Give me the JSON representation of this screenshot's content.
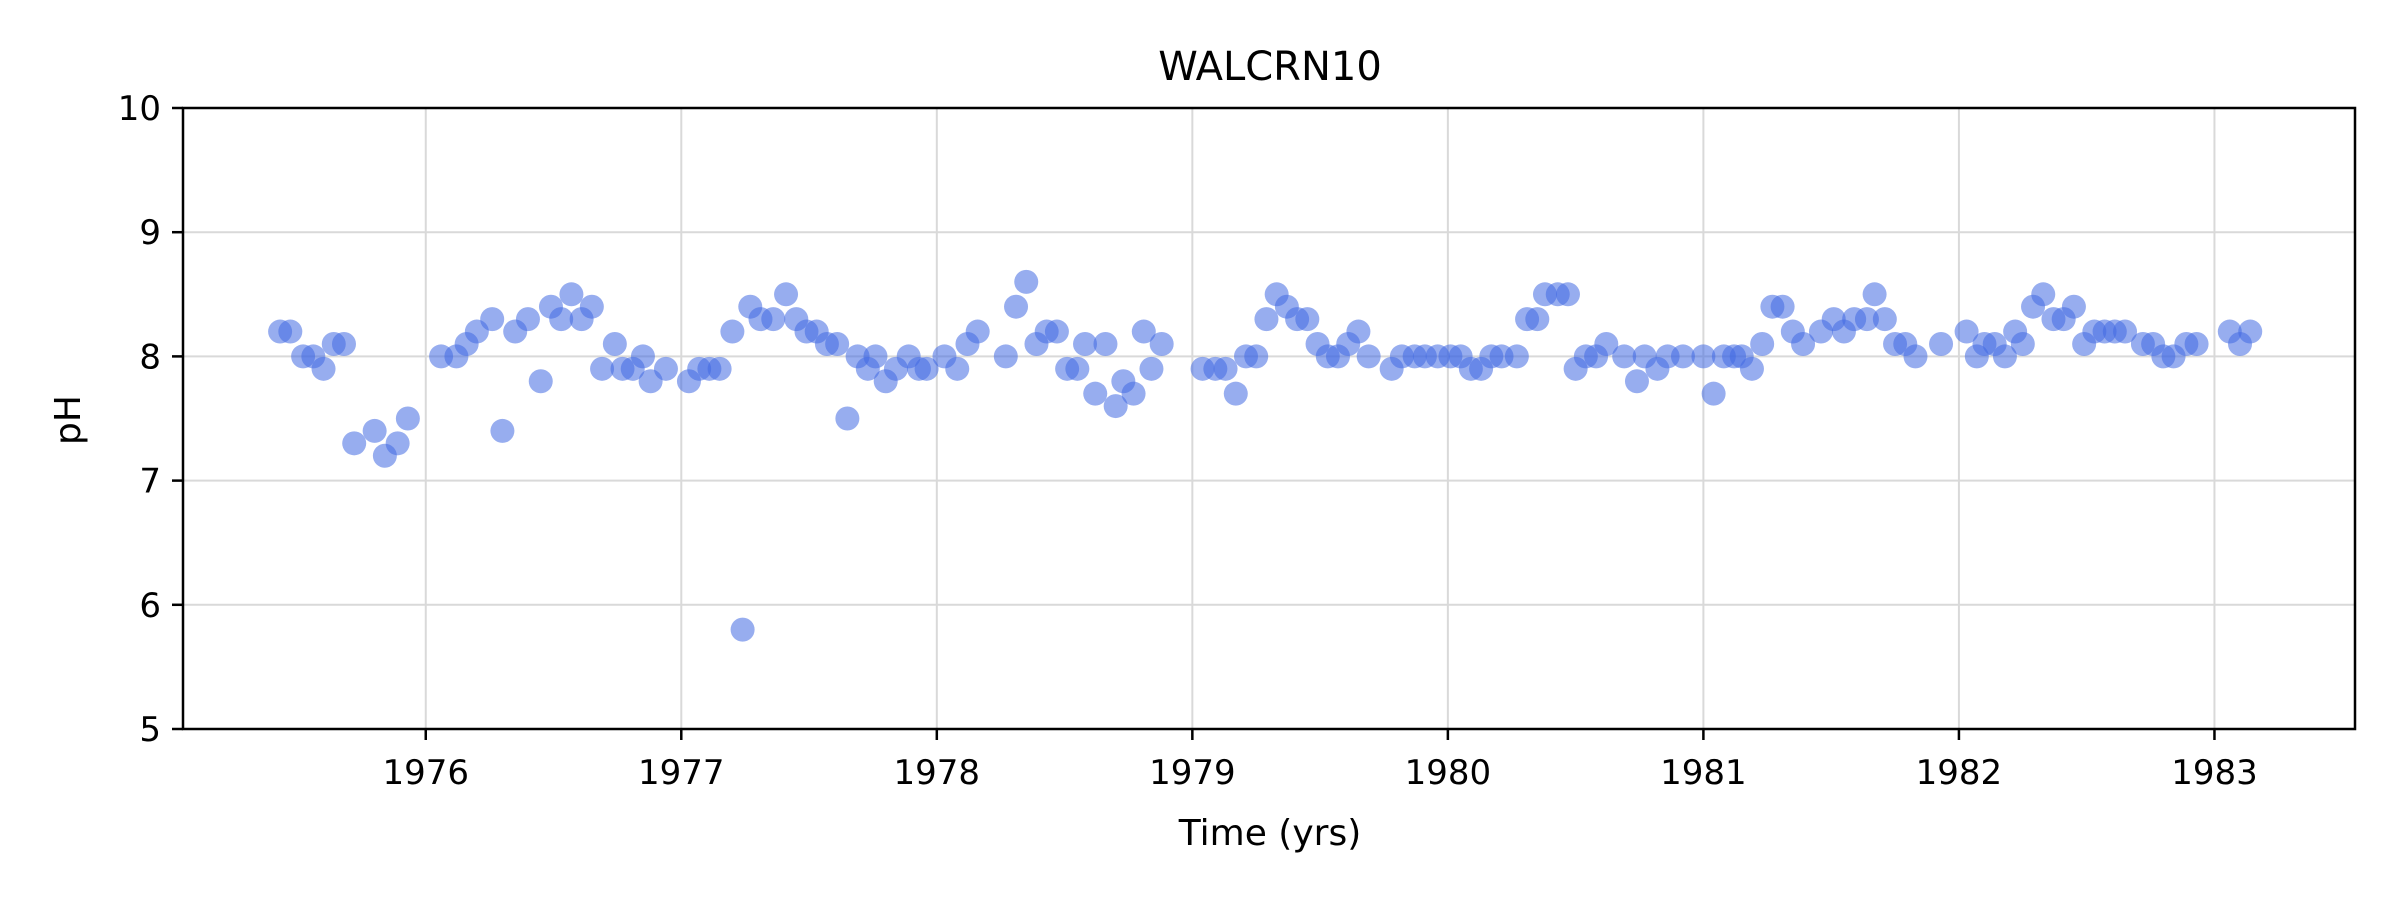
{
  "chart_data": {
    "type": "scatter",
    "title": "WALCRN10",
    "xlabel": "Time (yrs)",
    "ylabel": "pH",
    "xlim": [
      1975.05,
      1983.55
    ],
    "ylim": [
      5,
      10
    ],
    "xticks": [
      1976,
      1977,
      1978,
      1979,
      1980,
      1981,
      1982,
      1983
    ],
    "yticks": [
      5,
      6,
      7,
      8,
      9,
      10
    ],
    "grid": true,
    "legend": "none",
    "color": "#4169e1",
    "opacity": 0.55,
    "series": [
      {
        "points": [
          [
            1975.43,
            8.2
          ],
          [
            1975.47,
            8.2
          ],
          [
            1975.52,
            8.0
          ],
          [
            1975.56,
            8.0
          ],
          [
            1975.6,
            7.9
          ],
          [
            1975.64,
            8.1
          ],
          [
            1975.68,
            8.1
          ],
          [
            1975.72,
            7.3
          ],
          [
            1975.8,
            7.4
          ],
          [
            1975.84,
            7.2
          ],
          [
            1975.89,
            7.3
          ],
          [
            1975.93,
            7.5
          ],
          [
            1976.06,
            8.0
          ],
          [
            1976.12,
            8.0
          ],
          [
            1976.16,
            8.1
          ],
          [
            1976.2,
            8.2
          ],
          [
            1976.26,
            8.3
          ],
          [
            1976.3,
            7.4
          ],
          [
            1976.35,
            8.2
          ],
          [
            1976.4,
            8.3
          ],
          [
            1976.45,
            7.8
          ],
          [
            1976.49,
            8.4
          ],
          [
            1976.53,
            8.3
          ],
          [
            1976.57,
            8.5
          ],
          [
            1976.61,
            8.3
          ],
          [
            1976.65,
            8.4
          ],
          [
            1976.69,
            7.9
          ],
          [
            1976.74,
            8.1
          ],
          [
            1976.77,
            7.9
          ],
          [
            1976.81,
            7.9
          ],
          [
            1976.85,
            8.0
          ],
          [
            1976.88,
            7.8
          ],
          [
            1976.94,
            7.9
          ],
          [
            1977.03,
            7.8
          ],
          [
            1977.07,
            7.9
          ],
          [
            1977.11,
            7.9
          ],
          [
            1977.15,
            7.9
          ],
          [
            1977.2,
            8.2
          ],
          [
            1977.24,
            5.8
          ],
          [
            1977.27,
            8.4
          ],
          [
            1977.31,
            8.3
          ],
          [
            1977.36,
            8.3
          ],
          [
            1977.41,
            8.5
          ],
          [
            1977.45,
            8.3
          ],
          [
            1977.49,
            8.2
          ],
          [
            1977.53,
            8.2
          ],
          [
            1977.57,
            8.1
          ],
          [
            1977.61,
            8.1
          ],
          [
            1977.65,
            7.5
          ],
          [
            1977.69,
            8.0
          ],
          [
            1977.73,
            7.9
          ],
          [
            1977.76,
            8.0
          ],
          [
            1977.8,
            7.8
          ],
          [
            1977.84,
            7.9
          ],
          [
            1977.89,
            8.0
          ],
          [
            1977.93,
            7.9
          ],
          [
            1977.96,
            7.9
          ],
          [
            1978.03,
            8.0
          ],
          [
            1978.08,
            7.9
          ],
          [
            1978.12,
            8.1
          ],
          [
            1978.16,
            8.2
          ],
          [
            1978.27,
            8.0
          ],
          [
            1978.31,
            8.4
          ],
          [
            1978.35,
            8.6
          ],
          [
            1978.39,
            8.1
          ],
          [
            1978.43,
            8.2
          ],
          [
            1978.47,
            8.2
          ],
          [
            1978.51,
            7.9
          ],
          [
            1978.55,
            7.9
          ],
          [
            1978.58,
            8.1
          ],
          [
            1978.62,
            7.7
          ],
          [
            1978.66,
            8.1
          ],
          [
            1978.7,
            7.6
          ],
          [
            1978.73,
            7.8
          ],
          [
            1978.77,
            7.7
          ],
          [
            1978.81,
            8.2
          ],
          [
            1978.84,
            7.9
          ],
          [
            1978.88,
            8.1
          ],
          [
            1979.04,
            7.9
          ],
          [
            1979.09,
            7.9
          ],
          [
            1979.13,
            7.9
          ],
          [
            1979.17,
            7.7
          ],
          [
            1979.21,
            8.0
          ],
          [
            1979.25,
            8.0
          ],
          [
            1979.29,
            8.3
          ],
          [
            1979.33,
            8.5
          ],
          [
            1979.37,
            8.4
          ],
          [
            1979.41,
            8.3
          ],
          [
            1979.45,
            8.3
          ],
          [
            1979.49,
            8.1
          ],
          [
            1979.53,
            8.0
          ],
          [
            1979.57,
            8.0
          ],
          [
            1979.61,
            8.1
          ],
          [
            1979.65,
            8.2
          ],
          [
            1979.69,
            8.0
          ],
          [
            1979.78,
            7.9
          ],
          [
            1979.82,
            8.0
          ],
          [
            1979.87,
            8.0
          ],
          [
            1979.91,
            8.0
          ],
          [
            1979.96,
            8.0
          ],
          [
            1980.01,
            8.0
          ],
          [
            1980.05,
            8.0
          ],
          [
            1980.09,
            7.9
          ],
          [
            1980.13,
            7.9
          ],
          [
            1980.17,
            8.0
          ],
          [
            1980.21,
            8.0
          ],
          [
            1980.27,
            8.0
          ],
          [
            1980.31,
            8.3
          ],
          [
            1980.35,
            8.3
          ],
          [
            1980.38,
            8.5
          ],
          [
            1980.43,
            8.5
          ],
          [
            1980.47,
            8.5
          ],
          [
            1980.5,
            7.9
          ],
          [
            1980.54,
            8.0
          ],
          [
            1980.58,
            8.0
          ],
          [
            1980.62,
            8.1
          ],
          [
            1980.69,
            8.0
          ],
          [
            1980.74,
            7.8
          ],
          [
            1980.77,
            8.0
          ],
          [
            1980.82,
            7.9
          ],
          [
            1980.86,
            8.0
          ],
          [
            1980.92,
            8.0
          ],
          [
            1981.0,
            8.0
          ],
          [
            1981.04,
            7.7
          ],
          [
            1981.08,
            8.0
          ],
          [
            1981.12,
            8.0
          ],
          [
            1981.15,
            8.0
          ],
          [
            1981.19,
            7.9
          ],
          [
            1981.23,
            8.1
          ],
          [
            1981.27,
            8.4
          ],
          [
            1981.31,
            8.4
          ],
          [
            1981.35,
            8.2
          ],
          [
            1981.39,
            8.1
          ],
          [
            1981.46,
            8.2
          ],
          [
            1981.51,
            8.3
          ],
          [
            1981.55,
            8.2
          ],
          [
            1981.59,
            8.3
          ],
          [
            1981.64,
            8.3
          ],
          [
            1981.67,
            8.5
          ],
          [
            1981.71,
            8.3
          ],
          [
            1981.75,
            8.1
          ],
          [
            1981.79,
            8.1
          ],
          [
            1981.83,
            8.0
          ],
          [
            1981.93,
            8.1
          ],
          [
            1982.03,
            8.2
          ],
          [
            1982.07,
            8.0
          ],
          [
            1982.1,
            8.1
          ],
          [
            1982.14,
            8.1
          ],
          [
            1982.18,
            8.0
          ],
          [
            1982.22,
            8.2
          ],
          [
            1982.25,
            8.1
          ],
          [
            1982.29,
            8.4
          ],
          [
            1982.33,
            8.5
          ],
          [
            1982.37,
            8.3
          ],
          [
            1982.41,
            8.3
          ],
          [
            1982.45,
            8.4
          ],
          [
            1982.49,
            8.1
          ],
          [
            1982.53,
            8.2
          ],
          [
            1982.57,
            8.2
          ],
          [
            1982.61,
            8.2
          ],
          [
            1982.65,
            8.2
          ],
          [
            1982.72,
            8.1
          ],
          [
            1982.76,
            8.1
          ],
          [
            1982.8,
            8.0
          ],
          [
            1982.84,
            8.0
          ],
          [
            1982.89,
            8.1
          ],
          [
            1982.93,
            8.1
          ],
          [
            1983.06,
            8.2
          ],
          [
            1983.1,
            8.1
          ],
          [
            1983.14,
            8.2
          ]
        ]
      }
    ]
  }
}
